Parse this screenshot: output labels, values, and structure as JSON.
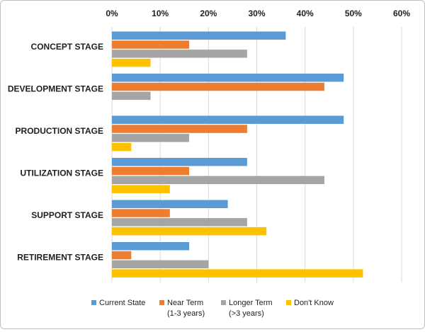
{
  "chart_data": {
    "type": "bar",
    "orientation": "horizontal",
    "title": "",
    "xlabel": "",
    "ylabel": "",
    "xlim": [
      0,
      60
    ],
    "x_ticks": [
      "0%",
      "10%",
      "20%",
      "30%",
      "40%",
      "50%",
      "60%"
    ],
    "x_axis_position": "top",
    "grid": true,
    "legend_position": "bottom",
    "categories": [
      "CONCEPT STAGE",
      "DEVELOPMENT STAGE",
      "PRODUCTION STAGE",
      "UTILIZATION STAGE",
      "SUPPORT STAGE",
      "RETIREMENT STAGE"
    ],
    "series": [
      {
        "name": "Current State",
        "legend_lines": [
          "Current State"
        ],
        "color": "#5b9bd5",
        "values": [
          36,
          48,
          48,
          28,
          24,
          16
        ]
      },
      {
        "name": "Near Term (1-3 years)",
        "legend_lines": [
          "Near Term",
          "(1-3 years)"
        ],
        "color": "#ed7d31",
        "values": [
          16,
          44,
          28,
          16,
          12,
          4
        ]
      },
      {
        "name": "Longer Term (>3 years)",
        "legend_lines": [
          "Longer Term",
          "(>3 years)"
        ],
        "color": "#a5a5a5",
        "values": [
          28,
          8,
          16,
          44,
          28,
          20
        ]
      },
      {
        "name": "Don't Know",
        "legend_lines": [
          "Don't Know"
        ],
        "color": "#ffc000",
        "values": [
          8,
          0,
          4,
          12,
          32,
          52
        ]
      }
    ]
  }
}
